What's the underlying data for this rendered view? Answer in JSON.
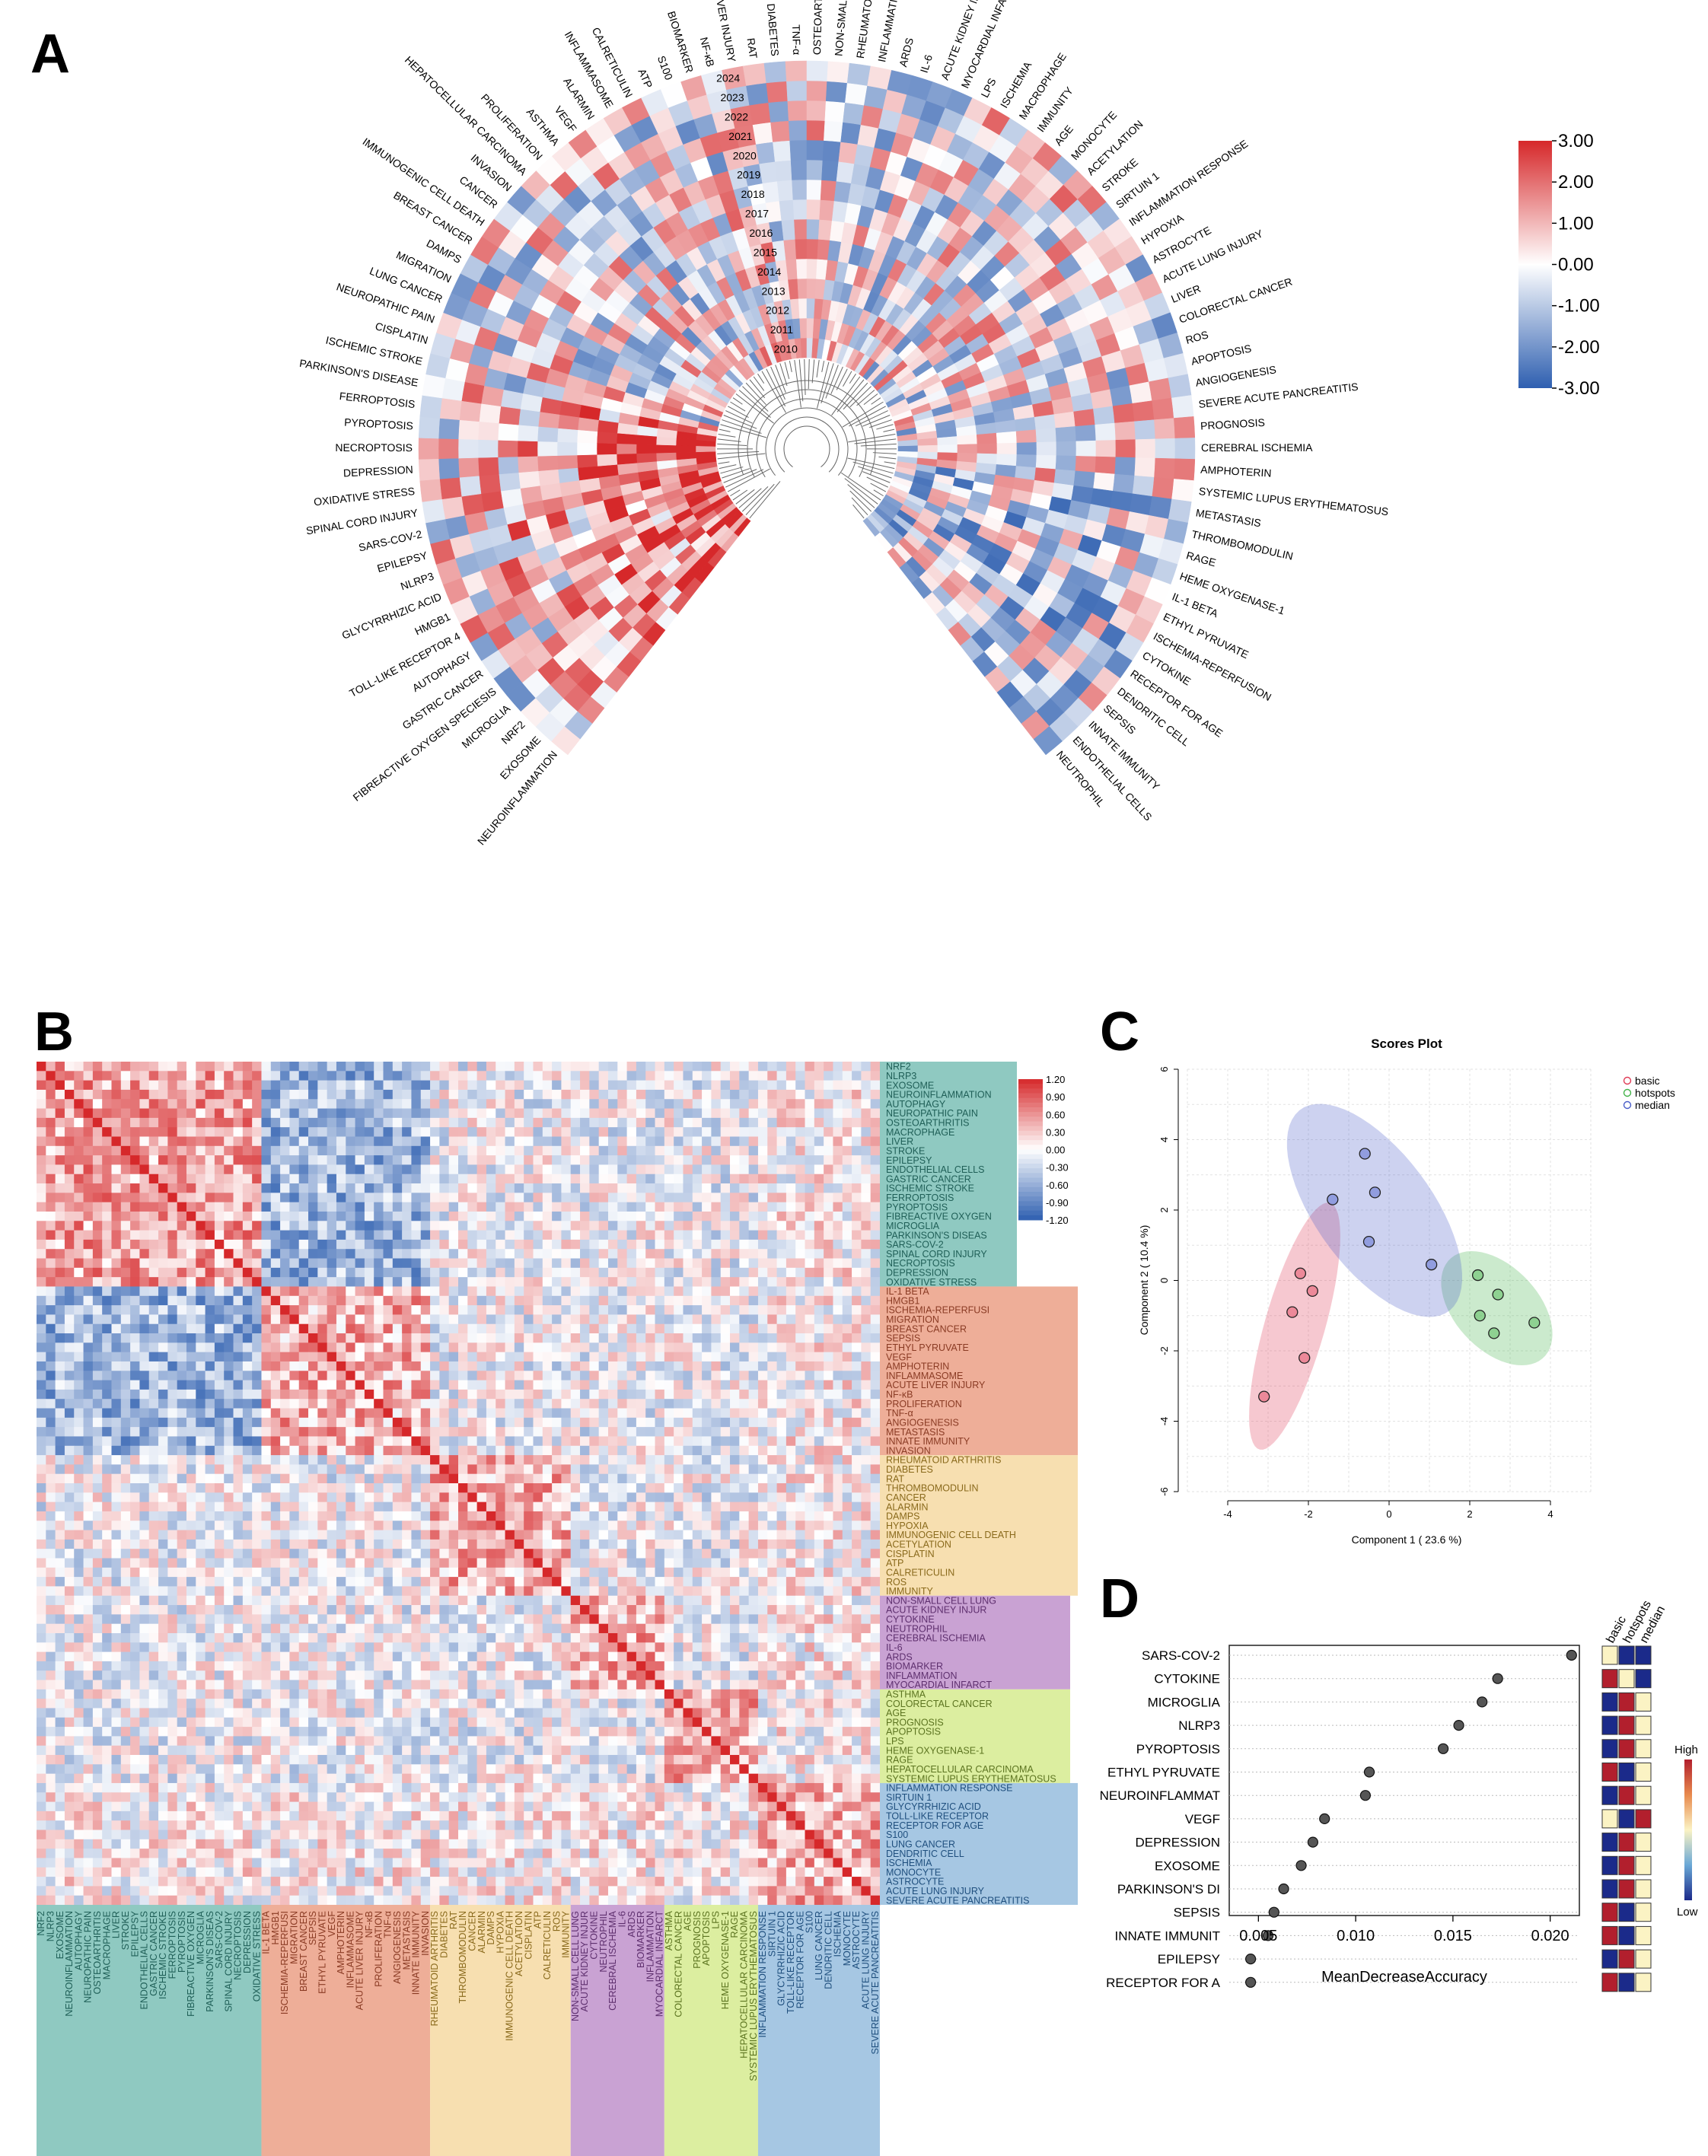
{
  "panels": {
    "a": "A",
    "b": "B",
    "c": "C",
    "d": "D"
  },
  "colors": {
    "low": "#2e5fb0",
    "mid": "#ffffff",
    "high": "#d6282a",
    "cluster": [
      "#8fc9c1",
      "#eeae98",
      "#f7dfb0",
      "#c9a2d3",
      "#dceea0",
      "#a6c7e3"
    ],
    "basic": "#e03b56",
    "hotspots": "#44b34a",
    "median": "#4a5ec9",
    "rank_high": "#b21f2d",
    "rank_mid": "#fbf3c4",
    "rank_low": "#1b2a8a"
  },
  "panel_a": {
    "years": [
      "2024",
      "2023",
      "2022",
      "2021",
      "2020",
      "2019",
      "2018",
      "2017",
      "2016",
      "2015",
      "2014",
      "2013",
      "2012",
      "2011",
      "2010"
    ],
    "terms": [
      "NEUROINFLAMMATION",
      "EXOSOME",
      "NRF2",
      "MICROGLIA",
      "FIBREACTIVE OXYGEN SPECIESIS",
      "GASTRIC CANCER",
      "AUTOPHAGY",
      "TOLL-LIKE RECEPTOR 4",
      "HMGB1",
      "GLYCYRRHIZIC ACID",
      "NLRP3",
      "EPILEPSY",
      "SARS-COV-2",
      "SPINAL CORD INJURY",
      "OXIDATIVE STRESS",
      "DEPRESSION",
      "NECROPTOSIS",
      "PYROPTOSIS",
      "FERROPTOSIS",
      "PARKINSON'S DISEASE",
      "ISCHEMIC STROKE",
      "CISPLATIN",
      "NEUROPATHIC PAIN",
      "LUNG CANCER",
      "MIGRATION",
      "DAMPS",
      "BREAST CANCER",
      "IMMUNOGENIC CELL DEATH",
      "CANCER",
      "INVASION",
      "HEPATOCELLULAR CARCINOMA",
      "PROLIFERATION",
      "ASTHMA",
      "VEGF",
      "ALARMIN",
      "INFLAMMASOME",
      "CALRETICULIN",
      "ATP",
      "S100",
      "BIOMARKER",
      "NF-κB",
      "ACUTE LIVER INJURY",
      "RAT",
      "DIABETES",
      "TNF-α",
      "OSTEOARTHRITIS",
      "NON-SMALL CELL LUNG CANCER",
      "RHEUMATOID ARTHRITIS",
      "INFLAMMATION",
      "ARDS",
      "IL-6",
      "ACUTE KIDNEY INJURY",
      "MYOCARDIAL INFARCTION",
      "LPS",
      "ISCHEMIA",
      "MACROPHAGE",
      "IMMUNITY",
      "AGE",
      "MONOCYTE",
      "ACETYLATION",
      "STROKE",
      "SIRTUIN 1",
      "INFLAMMATION RESPONSE",
      "HYPOXIA",
      "ASTROCYTE",
      "ACUTE LUNG INJURY",
      "LIVER",
      "COLORECTAL CANCER",
      "ROS",
      "APOPTOSIS",
      "ANGIOGENESIS",
      "SEVERE ACUTE PANCREATITIS",
      "PROGNOSIS",
      "CEREBRAL ISCHEMIA",
      "AMPHOTERIN",
      "SYSTEMIC LUPUS ERYTHEMATOSUS",
      "METASTASIS",
      "THROMBOMODULIN",
      "RAGE",
      "HEME OXYGENASE-1",
      "IL-1 BETA",
      "ETHYL PYRUVATE",
      "ISCHEMIA-REPERFUSION",
      "CYTOKINE",
      "RECEPTOR FOR AGE",
      "DENDRITIC CELL",
      "SEPSIS",
      "INNATE IMMUNITY",
      "ENDOTHELIAL CELLS",
      "NEUTROPHIL"
    ],
    "legend_ticks": [
      "3.00",
      "2.00",
      "1.00",
      "0.00",
      "-1.00",
      "-2.00",
      "-3.00"
    ]
  },
  "panel_b": {
    "rows": [
      "NRF2",
      "NLRP3",
      "EXOSOME",
      "NEUROINFLAMMATION",
      "AUTOPHAGY",
      "NEUROPATHIC PAIN",
      "OSTEOARTHRITIS",
      "MACROPHAGE",
      "LIVER",
      "STROKE",
      "EPILEPSY",
      "ENDOTHELIAL CELLS",
      "GASTRIC CANCER",
      "ISCHEMIC STROKE",
      "FERROPTOSIS",
      "PYROPTOSIS",
      "FIBREACTIVE OXYGEN",
      "MICROGLIA",
      "PARKINSON'S DISEAS",
      "SARS-COV-2",
      "SPINAL CORD INJURY",
      "NECROPTOSIS",
      "DEPRESSION",
      "OXIDATIVE STRESS",
      "IL-1 BETA",
      "HMGB1",
      "ISCHEMIA-REPERFUSI",
      "MIGRATION",
      "BREAST CANCER",
      "SEPSIS",
      "ETHYL PYRUVATE",
      "VEGF",
      "AMPHOTERIN",
      "INFLAMMASOME",
      "ACUTE LIVER INJURY",
      "NF-κB",
      "PROLIFERATION",
      "TNF-α",
      "ANGIOGENESIS",
      "METASTASIS",
      "INNATE IMMUNITY",
      "INVASION",
      "RHEUMATOID ARTHRITIS",
      "DIABETES",
      "RAT",
      "THROMBOMODULIN",
      "CANCER",
      "ALARMIN",
      "DAMPS",
      "HYPOXIA",
      "IMMUNOGENIC CELL DEATH",
      "ACETYLATION",
      "CISPLATIN",
      "ATP",
      "CALRETICULIN",
      "ROS",
      "IMMUNITY",
      "NON-SMALL CELL LUNG",
      "ACUTE KIDNEY INJUR",
      "CYTOKINE",
      "NEUTROPHIL",
      "CEREBRAL ISCHEMIA",
      "IL-6",
      "ARDS",
      "BIOMARKER",
      "INFLAMMATION",
      "MYOCARDIAL INFARCT",
      "ASTHMA",
      "COLORECTAL CANCER",
      "AGE",
      "PROGNOSIS",
      "APOPTOSIS",
      "LPS",
      "HEME OXYGENASE-1",
      "RAGE",
      "HEPATOCELLULAR CARCINOMA",
      "SYSTEMIC LUPUS ERYTHEMATOSUS",
      "INFLAMMATION RESPONSE",
      "SIRTUIN 1",
      "GLYCYRRHIZIC ACID",
      "TOLL-LIKE RECEPTOR",
      "RECEPTOR FOR AGE",
      "S100",
      "LUNG CANCER",
      "DENDRITIC CELL",
      "ISCHEMIA",
      "MONOCYTE",
      "ASTROCYTE",
      "ACUTE LUNG INJURY",
      "SEVERE ACUTE PANCREATITIS"
    ],
    "cluster_sizes": [
      24,
      18,
      15,
      10,
      10,
      13
    ],
    "legend_ticks": [
      "1.20",
      "0.90",
      "0.60",
      "0.30",
      "0.00",
      "-0.30",
      "-0.60",
      "-0.90",
      "-1.20"
    ]
  },
  "chart_data": [
    {
      "type": "scatter",
      "title": "Scores Plot",
      "xlabel": "Component 1 ( 23.6 %)",
      "ylabel": "Component 2 ( 10.4 %)",
      "xlim": [
        -5,
        5
      ],
      "ylim": [
        -6,
        6
      ],
      "xticks": [
        -4,
        -2,
        0,
        2,
        4
      ],
      "yticks": [
        -6,
        -4,
        -2,
        0,
        2,
        4,
        6
      ],
      "grid": true,
      "legend": "top-right",
      "series": [
        {
          "name": "basic",
          "points": [
            [
              -3.1,
              -3.3
            ],
            [
              -2.1,
              -2.2
            ],
            [
              -2.4,
              -0.9
            ],
            [
              -2.2,
              0.2
            ],
            [
              -1.9,
              -0.3
            ]
          ]
        },
        {
          "name": "hotspots",
          "points": [
            [
              2.2,
              0.15
            ],
            [
              2.7,
              -0.4
            ],
            [
              2.25,
              -1.0
            ],
            [
              2.6,
              -1.5
            ],
            [
              3.6,
              -1.2
            ]
          ]
        },
        {
          "name": "median",
          "points": [
            [
              -1.4,
              2.3
            ],
            [
              -0.6,
              3.6
            ],
            [
              -0.35,
              2.5
            ],
            [
              -0.5,
              1.1
            ],
            [
              1.05,
              0.45
            ]
          ]
        }
      ]
    },
    {
      "type": "scatter",
      "xlabel": "MeanDecreaseAccuracy",
      "xlim": [
        0.0035,
        0.0215
      ],
      "xticks": [
        "0.005",
        "0.010",
        "0.015",
        "0.020"
      ],
      "xtick_values": [
        0.005,
        0.01,
        0.015,
        0.02
      ],
      "categories": [
        "SARS-COV-2",
        "CYTOKINE",
        "MICROGLIA",
        "NLRP3",
        "PYROPTOSIS",
        "ETHYL PYRUVATE",
        "NEUROINFLAMMAT",
        "VEGF",
        "DEPRESSION",
        "EXOSOME",
        "PARKINSON'S DI",
        "SEPSIS",
        "INNATE IMMUNIT",
        "EPILEPSY",
        "RECEPTOR FOR A"
      ],
      "values": [
        0.0211,
        0.0173,
        0.0165,
        0.0153,
        0.0145,
        0.0107,
        0.0105,
        0.0084,
        0.0078,
        0.0072,
        0.0063,
        0.0058,
        0.0055,
        0.0046,
        0.0046
      ],
      "groups": [
        "basic",
        "hotspots",
        "median"
      ],
      "group_levels": [
        [
          "mid",
          "low",
          "low"
        ],
        [
          "high",
          "mid",
          "low"
        ],
        [
          "low",
          "high",
          "mid"
        ],
        [
          "low",
          "high",
          "mid"
        ],
        [
          "low",
          "high",
          "mid"
        ],
        [
          "high",
          "low",
          "mid"
        ],
        [
          "low",
          "high",
          "mid"
        ],
        [
          "mid",
          "low",
          "high"
        ],
        [
          "low",
          "high",
          "mid"
        ],
        [
          "low",
          "high",
          "mid"
        ],
        [
          "low",
          "high",
          "mid"
        ],
        [
          "high",
          "low",
          "mid"
        ],
        [
          "high",
          "low",
          "mid"
        ],
        [
          "low",
          "high",
          "mid"
        ],
        [
          "high",
          "low",
          "mid"
        ]
      ],
      "legend_high": "High",
      "legend_low": "Low"
    }
  ]
}
